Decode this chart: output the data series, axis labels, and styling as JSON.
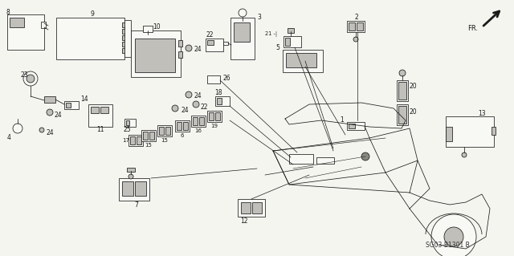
{
  "background_color": "#f5f5f0",
  "fig_width": 6.4,
  "fig_height": 3.19,
  "dpi": 100,
  "watermark": "SG03-B1301 B",
  "line_color": "#1a1a1a",
  "lw": 0.55
}
